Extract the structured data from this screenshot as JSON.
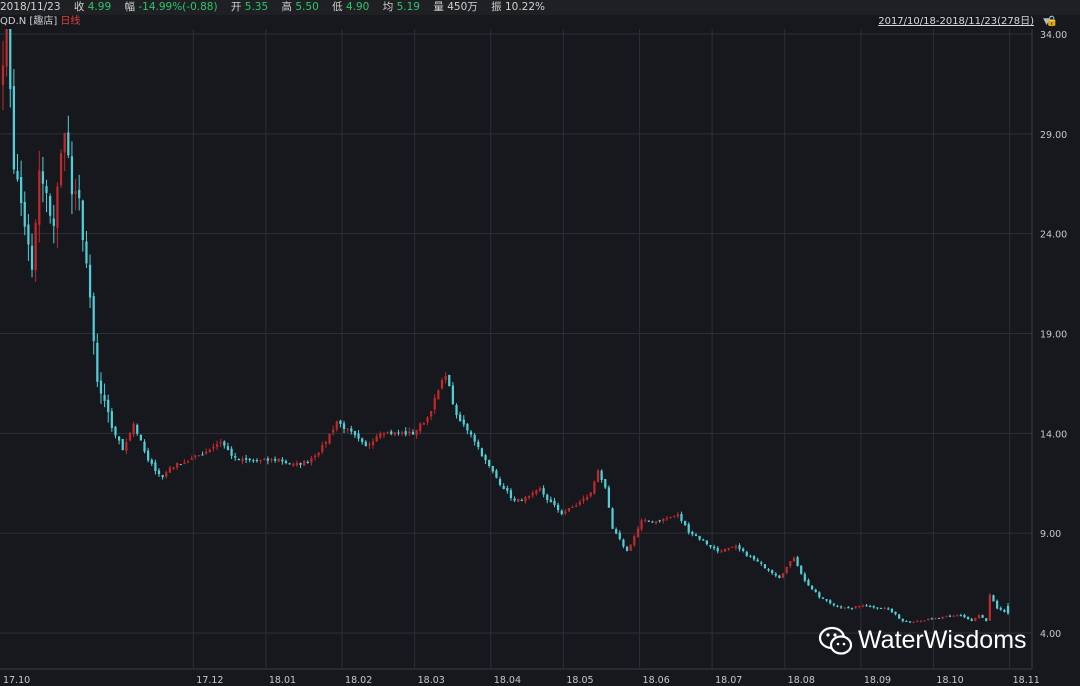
{
  "header": {
    "date": "2018/11/23",
    "close_label": "收",
    "close_value": "4.99",
    "change_label": "幅",
    "change_value": "-14.99%(-0.88)",
    "open_label": "开",
    "open_value": "5.35",
    "high_label": "高",
    "high_value": "5.50",
    "low_label": "低",
    "low_value": "4.90",
    "avg_label": "均",
    "avg_value": "5.19",
    "volume_label": "量",
    "volume_value": "450万",
    "amplitude_label": "振",
    "amplitude_value": "10.22%"
  },
  "subheader": {
    "ticker": "QD.N",
    "name": "[趣店]",
    "period": "日线",
    "range": "2017/10/18-2018/11/23(278日)"
  },
  "watermark": {
    "text": "WaterWisdoms"
  },
  "colors": {
    "up": "#c0282a",
    "down": "#4fd0d8",
    "grid": "#2c2f35",
    "background": "#16181d"
  },
  "chart_data": {
    "type": "candlestick",
    "x_ticks": [
      "17.10",
      "17.12",
      "18.01",
      "18.02",
      "18.03",
      "18.04",
      "18.05",
      "18.06",
      "18.07",
      "18.08",
      "18.09",
      "18.10",
      "18.11"
    ],
    "y_ticks": [
      "34.00",
      "29.00",
      "24.00",
      "19.00",
      "14.00",
      "9.00",
      "4.00"
    ],
    "ylim": [
      4.0,
      34.0
    ],
    "annotations": {
      "high_marker": "35.45"
    },
    "trading_days": 278,
    "month_start_index": [
      0,
      53,
      73,
      94,
      114,
      135,
      155,
      176,
      196,
      216,
      237,
      257,
      278
    ],
    "anchors": [
      [
        0,
        33.0
      ],
      [
        1,
        35.45
      ],
      [
        3,
        27.5
      ],
      [
        6,
        24.5
      ],
      [
        8,
        22.0
      ],
      [
        10,
        27.0
      ],
      [
        14,
        24.5
      ],
      [
        17,
        29.5
      ],
      [
        19,
        26.0
      ],
      [
        21,
        25.5
      ],
      [
        23,
        22.5
      ],
      [
        26,
        16.5
      ],
      [
        30,
        14.3
      ],
      [
        33,
        13.2
      ],
      [
        36,
        14.5
      ],
      [
        40,
        12.6
      ],
      [
        44,
        11.8
      ],
      [
        46,
        12.3
      ],
      [
        52,
        12.7
      ],
      [
        56,
        13.1
      ],
      [
        60,
        13.6
      ],
      [
        64,
        12.7
      ],
      [
        70,
        12.6
      ],
      [
        76,
        12.7
      ],
      [
        80,
        12.4
      ],
      [
        84,
        12.6
      ],
      [
        88,
        13.3
      ],
      [
        92,
        14.6
      ],
      [
        96,
        14.0
      ],
      [
        100,
        13.3
      ],
      [
        104,
        14.1
      ],
      [
        108,
        14.0
      ],
      [
        113,
        14.0
      ],
      [
        117,
        14.8
      ],
      [
        122,
        17.0
      ],
      [
        125,
        14.8
      ],
      [
        129,
        14.0
      ],
      [
        133,
        12.6
      ],
      [
        137,
        11.5
      ],
      [
        141,
        10.6
      ],
      [
        145,
        10.8
      ],
      [
        148,
        11.2
      ],
      [
        150,
        10.7
      ],
      [
        154,
        10.0
      ],
      [
        158,
        10.4
      ],
      [
        162,
        11.0
      ],
      [
        164,
        12.2
      ],
      [
        166,
        11.2
      ],
      [
        168,
        9.2
      ],
      [
        172,
        8.1
      ],
      [
        176,
        9.6
      ],
      [
        180,
        9.6
      ],
      [
        186,
        9.9
      ],
      [
        189,
        9.1
      ],
      [
        193,
        8.6
      ],
      [
        197,
        8.1
      ],
      [
        202,
        8.3
      ],
      [
        206,
        7.8
      ],
      [
        210,
        7.3
      ],
      [
        214,
        6.8
      ],
      [
        218,
        7.8
      ],
      [
        221,
        6.6
      ],
      [
        225,
        5.8
      ],
      [
        229,
        5.4
      ],
      [
        233,
        5.2
      ],
      [
        237,
        5.4
      ],
      [
        240,
        5.3
      ],
      [
        244,
        5.2
      ],
      [
        248,
        4.6
      ],
      [
        252,
        4.6
      ],
      [
        256,
        4.7
      ],
      [
        260,
        4.8
      ],
      [
        264,
        4.9
      ],
      [
        267,
        4.6
      ],
      [
        269,
        4.9
      ],
      [
        271,
        4.6
      ],
      [
        272,
        5.9
      ],
      [
        274,
        5.2
      ],
      [
        277,
        5.0
      ]
    ],
    "last_bar": {
      "open": 5.35,
      "high": 5.5,
      "low": 4.9,
      "close": 4.99
    }
  }
}
